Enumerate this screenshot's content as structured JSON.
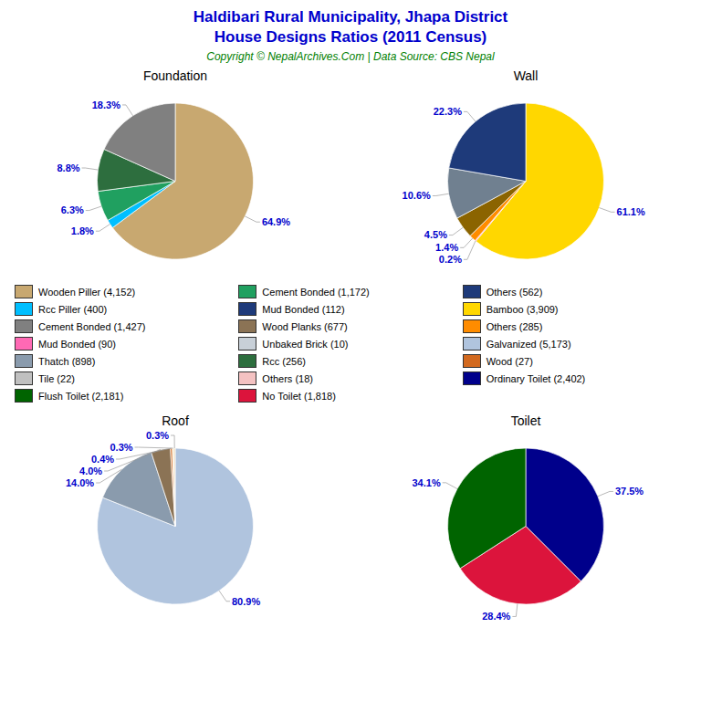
{
  "title": "Haldibari Rural Municipality, Jhapa District\nHouse Designs Ratios (2011 Census)",
  "title_color": "#0000CC",
  "subtitle": "Copyright © NepalArchives.Com | Data Source: CBS Nepal",
  "subtitle_color": "#008000",
  "legend_items": [
    {
      "name": "Wooden Piller (4,152)",
      "color": "#C8A870"
    },
    {
      "name": "Rcc Piller (400)",
      "color": "#00BFFF"
    },
    {
      "name": "Cement Bonded (1,427)",
      "color": "#808080"
    },
    {
      "name": "Mud Bonded (90)",
      "color": "#FF69B4"
    },
    {
      "name": "Thatch (898)",
      "color": "#8A9BAD"
    },
    {
      "name": "Tile (22)",
      "color": "#C0C0C0"
    },
    {
      "name": "Flush Toilet (2,181)",
      "color": "#006400"
    },
    {
      "name": "Cement Bonded (1,172)",
      "color": "#20A060"
    },
    {
      "name": "Mud Bonded (112)",
      "color": "#1E3A7A"
    },
    {
      "name": "Wood Planks (677)",
      "color": "#8B7355"
    },
    {
      "name": "Unbaked Brick (10)",
      "color": "#C8D0D8"
    },
    {
      "name": "Rcc (256)",
      "color": "#2D6E3E"
    },
    {
      "name": "Others (18)",
      "color": "#F4C2C2"
    },
    {
      "name": "No Toilet (1,818)",
      "color": "#DC143C"
    },
    {
      "name": "Others (562)",
      "color": "#1E3A7A"
    },
    {
      "name": "Bamboo (3,909)",
      "color": "#FFD700"
    },
    {
      "name": "Others (285)",
      "color": "#FF8C00"
    },
    {
      "name": "Galvanized (5,173)",
      "color": "#B0C4DE"
    },
    {
      "name": "Wood (27)",
      "color": "#D2691E"
    },
    {
      "name": "Ordinary Toilet (2,402)",
      "color": "#00008B"
    }
  ],
  "chart_data": [
    {
      "type": "pie",
      "title": "Foundation",
      "values": [
        64.9,
        1.8,
        6.3,
        8.8,
        18.3
      ],
      "value_labels": [
        "64.9%",
        "1.8%",
        "6.3%",
        "8.8%",
        "18.3%"
      ],
      "colors": [
        "#C8A870",
        "#00BFFF",
        "#20A060",
        "#2D6E3E",
        "#808080"
      ],
      "data_labels": true,
      "color": "#0000CC"
    },
    {
      "type": "pie",
      "title": "Wall",
      "values": [
        61.1,
        0.2,
        1.4,
        4.5,
        10.6,
        22.3
      ],
      "value_labels": [
        "61.1%",
        "0.2%",
        "1.4%",
        "4.5%",
        "10.6%",
        "22.3%"
      ],
      "colors": [
        "#FFD700",
        "#FF69B4",
        "#FF8C00",
        "#8B6400",
        "#708090",
        "#1E3A7A"
      ],
      "data_labels": true,
      "color": "#0000CC"
    },
    {
      "type": "pie",
      "title": "Roof",
      "values": [
        80.9,
        14.0,
        4.0,
        0.4,
        0.3,
        0.3
      ],
      "value_labels": [
        "80.9%",
        "14.0%",
        "4.0%",
        "0.4%",
        "0.3%",
        "0.3%"
      ],
      "colors": [
        "#B0C4DE",
        "#8A9BAD",
        "#8B7355",
        "#D2691E",
        "#F5DEB3",
        "#E8D5B0"
      ],
      "data_labels": true,
      "color": "#0000CC"
    },
    {
      "type": "pie",
      "title": "Toilet",
      "values": [
        37.5,
        28.4,
        34.1
      ],
      "value_labels": [
        "37.5%",
        "28.4%",
        "34.1%"
      ],
      "colors": [
        "#00008B",
        "#DC143C",
        "#006400"
      ],
      "data_labels": true,
      "color": "#0000CC"
    }
  ]
}
